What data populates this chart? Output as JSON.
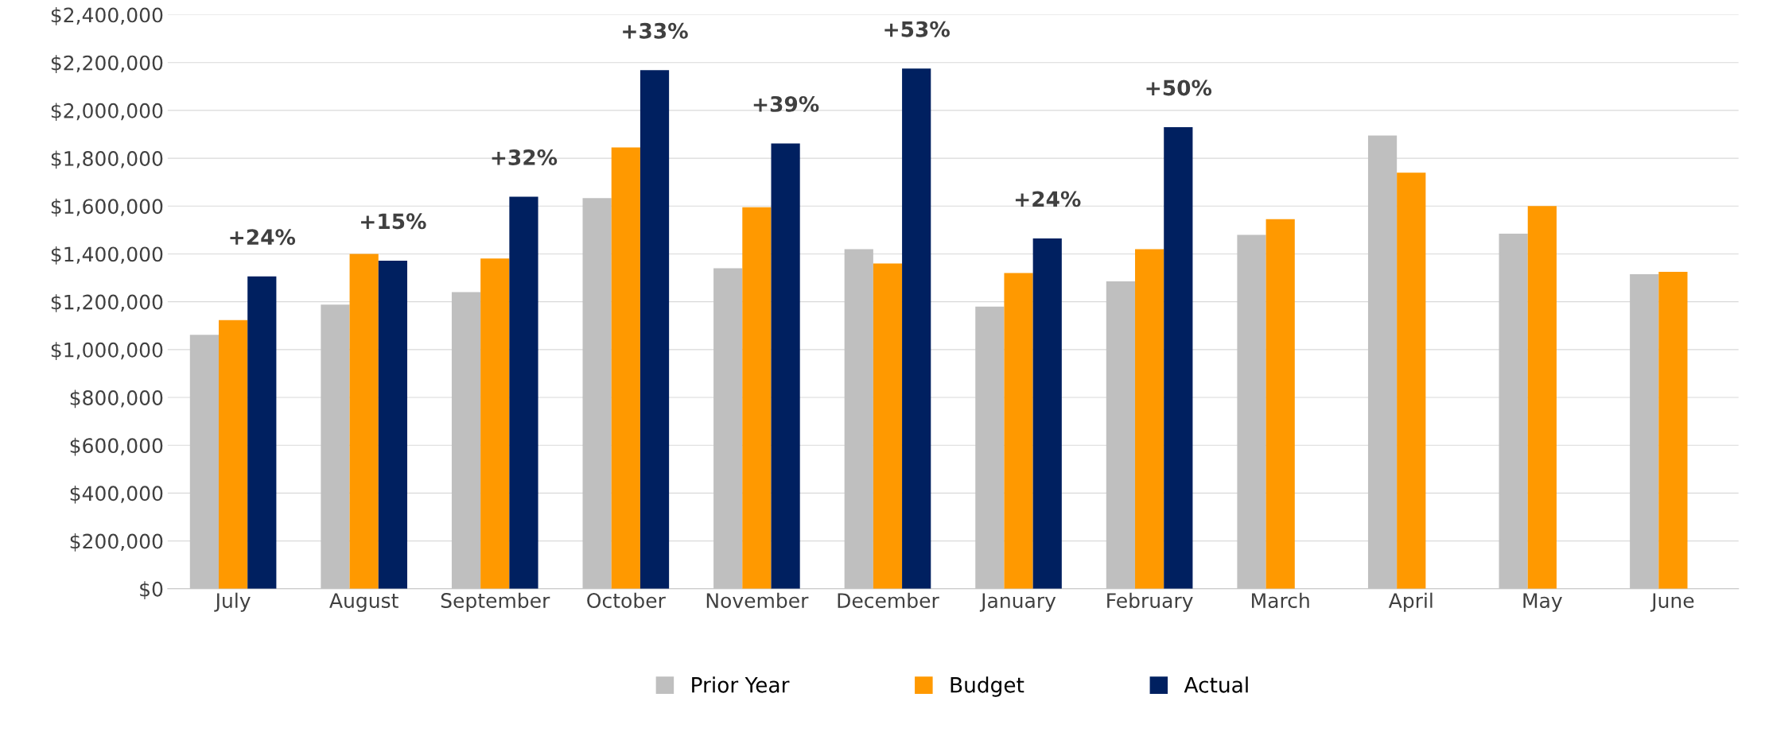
{
  "chart_data": {
    "type": "bar",
    "categories": [
      "July",
      "August",
      "September",
      "October",
      "November",
      "December",
      "January",
      "February",
      "March",
      "April",
      "May",
      "June"
    ],
    "series": [
      {
        "name": "Prior Year",
        "color": "#bfbfbf",
        "values": [
          1062000,
          1188000,
          1240000,
          1633000,
          1340000,
          1420000,
          1180000,
          1285000,
          1480000,
          1895000,
          1485000,
          1315000
        ]
      },
      {
        "name": "Budget",
        "color": "#ff9900",
        "values": [
          1123000,
          1400000,
          1381000,
          1845000,
          1595000,
          1360000,
          1320000,
          1420000,
          1545000,
          1740000,
          1600000,
          1325000
        ]
      },
      {
        "name": "Actual",
        "color": "#002060",
        "values": [
          1306000,
          1372000,
          1639000,
          2168000,
          1862000,
          2175000,
          1465000,
          1930000,
          null,
          null,
          null,
          null
        ]
      }
    ],
    "annotations": [
      "+24%",
      "+15%",
      "+32%",
      "+33%",
      "+39%",
      "+53%",
      "+24%",
      "+50%"
    ],
    "ylim": [
      0,
      2400000
    ],
    "yticks": [
      {
        "value": 0,
        "label": "$0"
      },
      {
        "value": 200000,
        "label": "$200,000"
      },
      {
        "value": 400000,
        "label": "$400,000"
      },
      {
        "value": 600000,
        "label": "$600,000"
      },
      {
        "value": 800000,
        "label": "$800,000"
      },
      {
        "value": 1000000,
        "label": "$1,000,000"
      },
      {
        "value": 1200000,
        "label": "$1,200,000"
      },
      {
        "value": 1400000,
        "label": "$1,400,000"
      },
      {
        "value": 1600000,
        "label": "$1,600,000"
      },
      {
        "value": 1800000,
        "label": "$1,800,000"
      },
      {
        "value": 2000000,
        "label": "$2,000,000"
      },
      {
        "value": 2200000,
        "label": "$2,200,000"
      },
      {
        "value": 2400000,
        "label": "$2,400,000"
      }
    ],
    "grid": "y",
    "legend": "bottom"
  }
}
